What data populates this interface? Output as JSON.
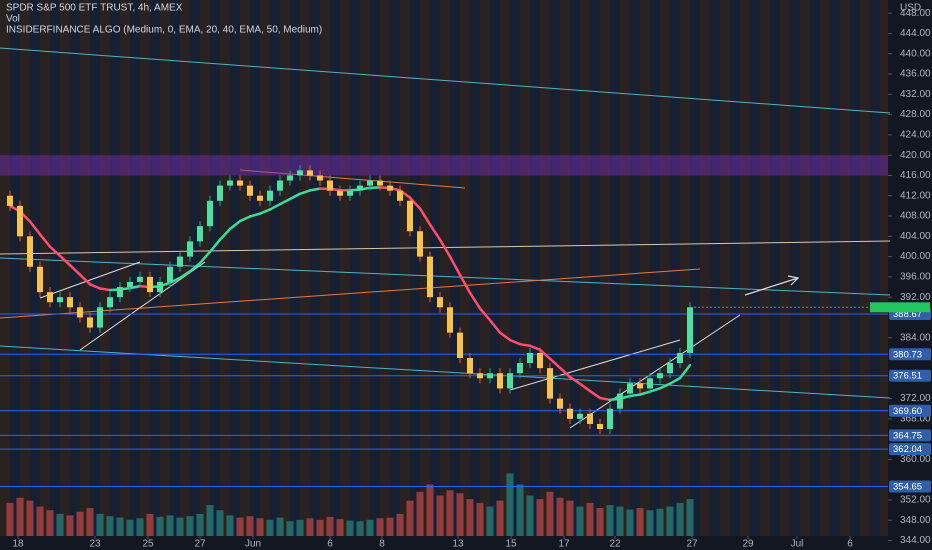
{
  "chart_data": {
    "type": "candlestick",
    "title": "SPDR S&P 500 ETF TRUST, 4h, AMEX",
    "volume_label": "Vol",
    "indicator_label": "INSIDERFINANCE ALGO (Medium, 0, EMA, 20, 40, EMA, 50, Medium)",
    "currency": "USD",
    "up_color": "#26a69a",
    "down_color": "#ef5350",
    "ylim": [
      344.9,
      450.6
    ],
    "xlim": [
      -1,
      86
    ],
    "vlim": [
      0,
      110
    ],
    "yticks": [
      {
        "value": 448,
        "label": "448.00"
      },
      {
        "value": 444,
        "label": "444.00"
      },
      {
        "value": 440,
        "label": "440.00"
      },
      {
        "value": 436,
        "label": "436.00"
      },
      {
        "value": 432,
        "label": "432.00"
      },
      {
        "value": 428,
        "label": "428.00"
      },
      {
        "value": 424,
        "label": "424.00"
      },
      {
        "value": 420,
        "label": "420.00"
      },
      {
        "value": 416,
        "label": "416.00"
      },
      {
        "value": 412,
        "label": "412.00"
      },
      {
        "value": 408,
        "label": "408.00"
      },
      {
        "value": 404,
        "label": "404.00"
      },
      {
        "value": 400,
        "label": "400.00"
      },
      {
        "value": 396,
        "label": "396.00"
      },
      {
        "value": 392,
        "label": "392.00"
      },
      {
        "value": 384,
        "label": "384.00"
      },
      {
        "value": 372,
        "label": "372.00"
      },
      {
        "value": 368,
        "label": "368.00"
      },
      {
        "value": 360,
        "label": "360.00"
      },
      {
        "value": 352,
        "label": "352.00"
      },
      {
        "value": 348,
        "label": "348.00"
      },
      {
        "value": 344,
        "label": "344.00"
      }
    ],
    "xticks": [
      {
        "value": 0.8,
        "label": "18"
      },
      {
        "value": 8.5,
        "label": "23"
      },
      {
        "value": 13.8,
        "label": "25"
      },
      {
        "value": 19,
        "label": "27"
      },
      {
        "value": 24.3,
        "label": "Jun"
      },
      {
        "value": 32,
        "label": "6"
      },
      {
        "value": 37.2,
        "label": "8"
      },
      {
        "value": 44.8,
        "label": "13"
      },
      {
        "value": 50.1,
        "label": "15"
      },
      {
        "value": 55.4,
        "label": "17"
      },
      {
        "value": 60.5,
        "label": "22"
      },
      {
        "value": 68.2,
        "label": "27"
      },
      {
        "value": 73.8,
        "label": "29"
      },
      {
        "value": 78.7,
        "label": "Jul"
      },
      {
        "value": 84,
        "label": "6"
      }
    ],
    "price_lines": [
      {
        "value": 388.67,
        "label": "388.67"
      },
      {
        "value": 380.73,
        "label": "380.73"
      },
      {
        "value": 376.51,
        "label": "376.51"
      },
      {
        "value": 369.6,
        "label": "369.60"
      },
      {
        "value": 364.75,
        "label": "364.75"
      },
      {
        "value": 362.04,
        "label": "362.04"
      },
      {
        "value": 354.65,
        "label": "354.65"
      }
    ],
    "zone": [
      416,
      420
    ],
    "candles": [
      [
        412,
        413,
        409,
        410
      ],
      [
        410,
        411,
        403,
        404
      ],
      [
        404,
        405,
        397,
        398
      ],
      [
        398,
        399,
        392,
        393
      ],
      [
        393,
        394,
        390,
        391
      ],
      [
        391,
        393,
        390,
        392
      ],
      [
        392,
        393,
        389,
        390
      ],
      [
        390,
        391,
        387,
        388
      ],
      [
        388,
        389,
        385,
        386
      ],
      [
        386,
        391,
        385,
        390
      ],
      [
        390,
        393,
        389,
        392
      ],
      [
        392,
        395,
        391,
        394
      ],
      [
        394,
        396,
        393,
        395
      ],
      [
        395,
        397,
        394,
        396
      ],
      [
        396,
        397,
        392,
        393
      ],
      [
        393,
        396,
        392,
        395
      ],
      [
        395,
        399,
        394,
        398
      ],
      [
        398,
        401,
        397,
        400
      ],
      [
        400,
        404,
        399,
        403
      ],
      [
        403,
        407,
        402,
        406
      ],
      [
        406,
        412,
        405,
        411
      ],
      [
        411,
        415,
        410,
        414
      ],
      [
        414,
        416,
        413,
        415
      ],
      [
        415,
        416,
        413,
        414
      ],
      [
        414,
        415,
        411,
        412
      ],
      [
        412,
        413,
        410,
        411
      ],
      [
        411,
        414,
        410,
        413
      ],
      [
        413,
        416,
        412,
        415
      ],
      [
        415,
        417,
        414,
        416
      ],
      [
        416,
        418,
        415,
        417
      ],
      [
        417,
        418,
        415,
        416
      ],
      [
        416,
        417,
        414,
        415
      ],
      [
        415,
        416,
        412,
        413
      ],
      [
        413,
        414,
        411,
        412
      ],
      [
        412,
        414,
        411,
        413
      ],
      [
        413,
        415,
        412,
        414
      ],
      [
        414,
        416,
        413,
        415
      ],
      [
        415,
        416,
        413,
        414
      ],
      [
        414,
        415,
        412,
        413
      ],
      [
        413,
        414,
        410,
        411
      ],
      [
        411,
        412,
        404,
        405
      ],
      [
        405,
        406,
        399,
        400
      ],
      [
        400,
        401,
        391,
        392
      ],
      [
        392,
        393,
        389,
        390
      ],
      [
        390,
        391,
        384,
        385
      ],
      [
        385,
        386,
        379,
        380
      ],
      [
        380,
        381,
        376,
        377
      ],
      [
        377,
        378,
        375,
        376
      ],
      [
        376,
        378,
        375,
        377
      ],
      [
        377,
        378,
        373,
        374
      ],
      [
        374,
        378,
        373,
        377
      ],
      [
        377,
        380,
        376,
        379
      ],
      [
        379,
        382,
        378,
        381
      ],
      [
        381,
        382,
        377,
        378
      ],
      [
        378,
        379,
        371,
        372
      ],
      [
        372,
        373,
        369,
        370
      ],
      [
        370,
        371,
        367,
        368
      ],
      [
        368,
        370,
        367,
        369
      ],
      [
        369,
        370,
        366,
        367
      ],
      [
        367,
        368,
        365,
        366
      ],
      [
        366,
        371,
        365,
        370
      ],
      [
        370,
        374,
        369,
        373
      ],
      [
        373,
        376,
        372,
        375
      ],
      [
        375,
        376,
        373,
        374
      ],
      [
        374,
        377,
        373,
        376
      ],
      [
        376,
        378,
        375,
        377
      ],
      [
        377,
        380,
        376,
        379
      ],
      [
        379,
        382,
        378,
        381
      ],
      [
        381,
        391,
        380,
        390
      ]
    ],
    "volumes": [
      45,
      52,
      48,
      40,
      35,
      30,
      28,
      33,
      38,
      30,
      27,
      25,
      22,
      24,
      30,
      26,
      28,
      25,
      27,
      30,
      42,
      35,
      28,
      25,
      27,
      24,
      22,
      25,
      20,
      22,
      24,
      22,
      26,
      23,
      21,
      20,
      22,
      24,
      25,
      30,
      48,
      60,
      70,
      55,
      62,
      58,
      50,
      45,
      40,
      48,
      85,
      70,
      55,
      50,
      60,
      52,
      48,
      40,
      45,
      38,
      42,
      40,
      36,
      38,
      35,
      37,
      40,
      45,
      50
    ]
  }
}
